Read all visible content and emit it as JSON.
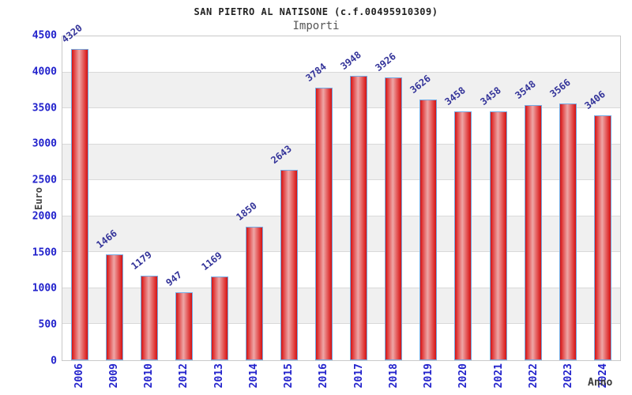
{
  "title": "SAN PIETRO AL NATISONE (c.f.00495910309)",
  "subtitle": "Importi",
  "chart_data": {
    "type": "bar",
    "title": "SAN PIETRO AL NATISONE (c.f.00495910309)",
    "subtitle": "Importi",
    "xlabel": "Anno",
    "ylabel": "Euro",
    "categories": [
      "2006",
      "2009",
      "2010",
      "2012",
      "2013",
      "2014",
      "2015",
      "2016",
      "2017",
      "2018",
      "2019",
      "2020",
      "2021",
      "2022",
      "2023",
      "2024"
    ],
    "values": [
      4320,
      1466,
      1179,
      947,
      1169,
      1850,
      2643,
      3784,
      3948,
      3926,
      3626,
      3458,
      3458,
      3548,
      3566,
      3406
    ],
    "ylim": [
      0,
      4500
    ],
    "yticks": [
      0,
      500,
      1000,
      1500,
      2000,
      2500,
      3000,
      3500,
      4000,
      4500
    ],
    "grid": "horizontal gridlines with alternating gray bands every 500",
    "legend": "none",
    "colors": {
      "bar_fill": "#e03030",
      "bar_highlight": "#eea6a6",
      "bar_border": "#74aae3",
      "axis_tick_label": "#2222cc",
      "value_label": "#333399",
      "band_gray": "#f0f0f0",
      "gridline": "#d9d9d9",
      "title_text": "#222222",
      "subtitle_text": "#555555",
      "axis_title_text": "#444444"
    }
  }
}
